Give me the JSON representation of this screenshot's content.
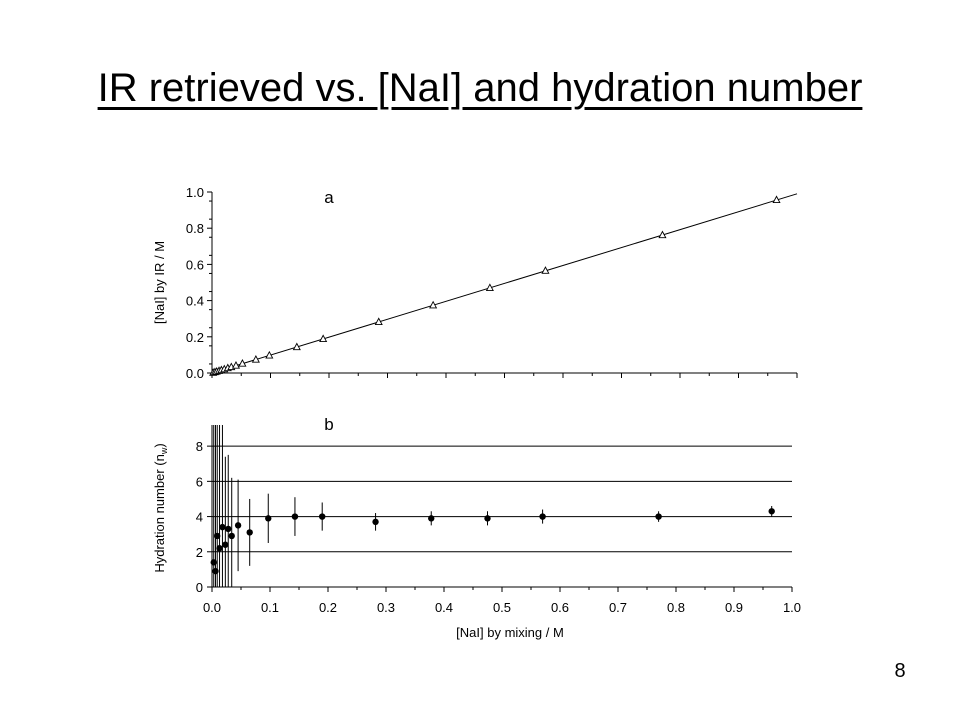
{
  "slide": {
    "title": "IR retrieved vs. [NaI] and hydration number",
    "page_number": "8"
  },
  "chart_data": [
    {
      "type": "scatter",
      "panel_label": "a",
      "xlabel": "",
      "ylabel": "[NaI] by IR / M",
      "xlim": [
        0,
        1.0
      ],
      "ylim": [
        0,
        1.0
      ],
      "y_ticks": [
        "0.0",
        "0.2",
        "0.4",
        "0.6",
        "0.8",
        "1.0"
      ],
      "grid": false,
      "marker": "open-triangle",
      "fit_line": {
        "from": [
          0,
          0
        ],
        "to": [
          1.0,
          0.99
        ]
      },
      "x": [
        0.002,
        0.005,
        0.008,
        0.012,
        0.016,
        0.021,
        0.027,
        0.033,
        0.041,
        0.052,
        0.075,
        0.098,
        0.145,
        0.19,
        0.285,
        0.378,
        0.475,
        0.57,
        0.77,
        0.965
      ],
      "y": [
        0.002,
        0.005,
        0.008,
        0.012,
        0.016,
        0.021,
        0.027,
        0.033,
        0.041,
        0.052,
        0.074,
        0.097,
        0.143,
        0.188,
        0.282,
        0.374,
        0.47,
        0.565,
        0.762,
        0.956
      ]
    },
    {
      "type": "scatter",
      "panel_label": "b",
      "xlabel": "[NaI] by mixing / M",
      "ylabel": "Hydration number (n",
      "ylabel_subscript": "w",
      "ylabel_suffix": ")",
      "x_ticks": [
        "0.0",
        "0.1",
        "0.2",
        "0.3",
        "0.4",
        "0.5",
        "0.6",
        "0.7",
        "0.8",
        "0.9",
        "1.0"
      ],
      "y_ticks": [
        "0",
        "2",
        "4",
        "6",
        "8"
      ],
      "xlim": [
        0,
        1.0
      ],
      "ylim": [
        0,
        9.2
      ],
      "grid": true,
      "marker": "filled-circle",
      "points": [
        {
          "x": 0.003,
          "y": 1.4,
          "err": 9.0
        },
        {
          "x": 0.006,
          "y": 0.9,
          "err": 9.0
        },
        {
          "x": 0.009,
          "y": 2.9,
          "err": 9.0
        },
        {
          "x": 0.013,
          "y": 2.2,
          "err": 9.0
        },
        {
          "x": 0.018,
          "y": 3.4,
          "err": 7.0
        },
        {
          "x": 0.023,
          "y": 2.4,
          "err": 5.0
        },
        {
          "x": 0.028,
          "y": 3.3,
          "err": 4.2
        },
        {
          "x": 0.034,
          "y": 2.9,
          "err": 3.3
        },
        {
          "x": 0.045,
          "y": 3.5,
          "err": 2.6
        },
        {
          "x": 0.065,
          "y": 3.1,
          "err": 1.9
        },
        {
          "x": 0.097,
          "y": 3.9,
          "err": 1.4
        },
        {
          "x": 0.143,
          "y": 4.0,
          "err": 1.1
        },
        {
          "x": 0.19,
          "y": 4.0,
          "err": 0.8
        },
        {
          "x": 0.282,
          "y": 3.7,
          "err": 0.5
        },
        {
          "x": 0.378,
          "y": 3.9,
          "err": 0.4
        },
        {
          "x": 0.475,
          "y": 3.9,
          "err": 0.4
        },
        {
          "x": 0.57,
          "y": 4.0,
          "err": 0.4
        },
        {
          "x": 0.77,
          "y": 4.0,
          "err": 0.3
        },
        {
          "x": 0.965,
          "y": 4.3,
          "err": 0.3
        }
      ]
    }
  ]
}
